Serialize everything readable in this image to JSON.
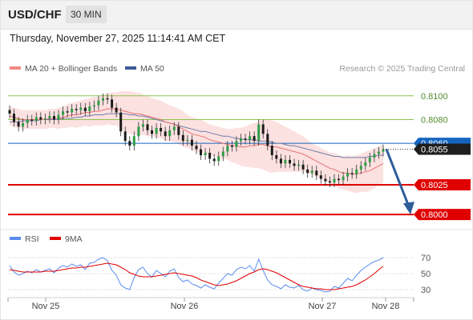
{
  "header": {
    "pair": "USD/CHF",
    "interval": "30 MIN"
  },
  "datetime": "Thursday, November 27, 2025 11:14:41 AM CET",
  "credit": "Research © 2025 Trading Central",
  "legend": {
    "price": [
      {
        "label": "MA 20 + Bollinger Bands",
        "color": "#f28b82"
      },
      {
        "label": "MA 50",
        "color": "#3c5a99"
      }
    ],
    "rsi": [
      {
        "label": "RSI",
        "color": "#5b8def"
      },
      {
        "label": "9MA",
        "color": "#e00000"
      }
    ]
  },
  "chart_data": [
    {
      "type": "line",
      "panel": "price",
      "x_tick_labels": [
        "Nov 25",
        "Nov 26",
        "Nov 27",
        "Nov 28"
      ],
      "ylim": [
        0.7992,
        0.8112
      ],
      "levels": [
        {
          "value": 0.81,
          "label": "0.8100",
          "style": "resistance",
          "color": "#8bc34a"
        },
        {
          "value": 0.808,
          "label": "0.8080",
          "style": "resistance",
          "color": "#8bc34a"
        },
        {
          "value": 0.806,
          "label": "0.8060",
          "style": "pivot",
          "color": "#1565c0"
        },
        {
          "value": 0.8025,
          "label": "0.8025",
          "style": "support",
          "color": "#e00000"
        },
        {
          "value": 0.8,
          "label": "0.8000",
          "style": "support",
          "color": "#e00000"
        }
      ],
      "last_price": {
        "value": 0.8055,
        "label": "0.8055"
      },
      "close_series": [
        0.8085,
        0.8078,
        0.8074,
        0.8077,
        0.808,
        0.8079,
        0.8082,
        0.808,
        0.8081,
        0.8083,
        0.808,
        0.8084,
        0.8087,
        0.8086,
        0.8089,
        0.8088,
        0.809,
        0.8087,
        0.8091,
        0.8092,
        0.8096,
        0.8098,
        0.8097,
        0.809,
        0.8086,
        0.807,
        0.8062,
        0.8058,
        0.8066,
        0.8074,
        0.8076,
        0.8071,
        0.8068,
        0.8073,
        0.807,
        0.8066,
        0.8071,
        0.8074,
        0.8067,
        0.8062,
        0.8063,
        0.8058,
        0.8055,
        0.805,
        0.8052,
        0.8047,
        0.8045,
        0.8049,
        0.8053,
        0.8058,
        0.8057,
        0.8062,
        0.8064,
        0.8063,
        0.8066,
        0.8062,
        0.8076,
        0.8068,
        0.8058,
        0.805,
        0.8047,
        0.8043,
        0.8046,
        0.8043,
        0.8041,
        0.8042,
        0.8038,
        0.8035,
        0.8037,
        0.8033,
        0.803,
        0.8028,
        0.8027,
        0.803,
        0.8029,
        0.8032,
        0.8035,
        0.8034,
        0.8038,
        0.8041,
        0.8044,
        0.8048,
        0.8051,
        0.8053,
        0.8055
      ],
      "ma20_series": [
        0.8083,
        0.8082,
        0.8081,
        0.808,
        0.808,
        0.808,
        0.808,
        0.808,
        0.808,
        0.8081,
        0.8081,
        0.8081,
        0.8082,
        0.8083,
        0.8084,
        0.8084,
        0.8085,
        0.8086,
        0.8086,
        0.8087,
        0.8087,
        0.8088,
        0.8089,
        0.8089,
        0.8089,
        0.8088,
        0.8087,
        0.8086,
        0.8085,
        0.8085,
        0.8084,
        0.8083,
        0.8082,
        0.8081,
        0.808,
        0.8078,
        0.8077,
        0.8076,
        0.8074,
        0.8072,
        0.807,
        0.8068,
        0.8067,
        0.8066,
        0.8065,
        0.8063,
        0.8062,
        0.8061,
        0.806,
        0.8059,
        0.8058,
        0.8058,
        0.8057,
        0.8057,
        0.8058,
        0.8058,
        0.8059,
        0.8059,
        0.8058,
        0.8057,
        0.8057,
        0.8056,
        0.8055,
        0.8054,
        0.8053,
        0.8052,
        0.8051,
        0.8049,
        0.8047,
        0.8045,
        0.8043,
        0.8041,
        0.8039,
        0.8038,
        0.8036,
        0.8035,
        0.8035,
        0.8034,
        0.8034,
        0.8035,
        0.8036,
        0.8037,
        0.8039,
        0.8041,
        0.8043
      ],
      "bb_width": [
        0.0008,
        0.0008,
        0.0008,
        0.0008,
        0.0008,
        0.0008,
        0.0008,
        0.0008,
        0.0008,
        0.0008,
        0.0008,
        0.0009,
        0.0009,
        0.001,
        0.001,
        0.0011,
        0.0011,
        0.0011,
        0.0012,
        0.0012,
        0.0012,
        0.0013,
        0.0013,
        0.0014,
        0.0014,
        0.0016,
        0.0017,
        0.0018,
        0.0018,
        0.0018,
        0.0017,
        0.0017,
        0.0016,
        0.0016,
        0.0016,
        0.0016,
        0.0015,
        0.0015,
        0.0015,
        0.0015,
        0.0014,
        0.0014,
        0.0014,
        0.0014,
        0.0013,
        0.0013,
        0.0013,
        0.0013,
        0.0013,
        0.0013,
        0.0014,
        0.0015,
        0.0016,
        0.0017,
        0.0018,
        0.0019,
        0.002,
        0.0021,
        0.0022,
        0.0022,
        0.0021,
        0.002,
        0.0019,
        0.0018,
        0.0017,
        0.0016,
        0.0015,
        0.0014,
        0.0013,
        0.0013,
        0.0013,
        0.0013,
        0.0013,
        0.0014,
        0.0014,
        0.0014,
        0.0015,
        0.0015,
        0.0016,
        0.0016,
        0.0017,
        0.0017,
        0.0017,
        0.0016,
        0.0016
      ],
      "ma50_series": [
        0.8078,
        0.8078,
        0.8078,
        0.8079,
        0.8079,
        0.8079,
        0.8079,
        0.808,
        0.808,
        0.808,
        0.808,
        0.808,
        0.8081,
        0.8081,
        0.8081,
        0.8082,
        0.8082,
        0.8083,
        0.8083,
        0.8084,
        0.8084,
        0.8084,
        0.8085,
        0.8085,
        0.8085,
        0.8085,
        0.8085,
        0.8084,
        0.8084,
        0.8083,
        0.8083,
        0.8082,
        0.8081,
        0.808,
        0.8079,
        0.8078,
        0.8077,
        0.8076,
        0.8075,
        0.8074,
        0.8073,
        0.8072,
        0.8071,
        0.807,
        0.807,
        0.8069,
        0.8068,
        0.8067,
        0.8066,
        0.8066,
        0.8065,
        0.8064,
        0.8064,
        0.8063,
        0.8063,
        0.8063,
        0.8062,
        0.8062,
        0.8062,
        0.8061,
        0.806,
        0.806,
        0.8059,
        0.8058,
        0.8058,
        0.8057,
        0.8056,
        0.8055,
        0.8054,
        0.8053,
        0.8052,
        0.8051,
        0.805,
        0.8049,
        0.8049,
        0.8048,
        0.8048,
        0.8048,
        0.8048,
        0.8048,
        0.8048,
        0.8049,
        0.8049,
        0.805,
        0.805
      ],
      "forecast_arrow": {
        "from": 0.8055,
        "to": 0.8
      }
    },
    {
      "type": "line",
      "panel": "rsi",
      "y_tick_labels": [
        "70",
        "50",
        "30"
      ],
      "y_ticks": [
        70,
        50,
        30
      ],
      "ylim": [
        20,
        80
      ],
      "rsi_series": [
        60,
        52,
        48,
        50,
        53,
        51,
        55,
        52,
        54,
        56,
        51,
        57,
        60,
        58,
        62,
        59,
        61,
        55,
        63,
        64,
        68,
        70,
        66,
        54,
        48,
        36,
        32,
        30,
        45,
        55,
        58,
        50,
        46,
        54,
        50,
        46,
        53,
        56,
        45,
        40,
        42,
        37,
        35,
        32,
        36,
        33,
        31,
        38,
        44,
        50,
        48,
        55,
        58,
        56,
        60,
        53,
        68,
        54,
        42,
        36,
        34,
        31,
        36,
        33,
        32,
        35,
        30,
        28,
        32,
        30,
        29,
        27,
        28,
        34,
        32,
        38,
        44,
        41,
        48,
        54,
        58,
        62,
        65,
        67,
        70
      ],
      "ma9_series": [
        55,
        54,
        53,
        52,
        52,
        52,
        52,
        52,
        53,
        53,
        53,
        54,
        55,
        56,
        57,
        57,
        58,
        58,
        59,
        60,
        61,
        62,
        63,
        62,
        61,
        58,
        55,
        51,
        49,
        47,
        46,
        46,
        46,
        47,
        48,
        49,
        50,
        51,
        50,
        49,
        48,
        47,
        45,
        42,
        40,
        38,
        36,
        35,
        36,
        37,
        39,
        41,
        44,
        47,
        50,
        52,
        55,
        56,
        55,
        53,
        51,
        48,
        45,
        42,
        39,
        36,
        34,
        33,
        32,
        31,
        31,
        30,
        30,
        30,
        31,
        32,
        33,
        34,
        36,
        39,
        42,
        46,
        50,
        55,
        59
      ]
    }
  ]
}
